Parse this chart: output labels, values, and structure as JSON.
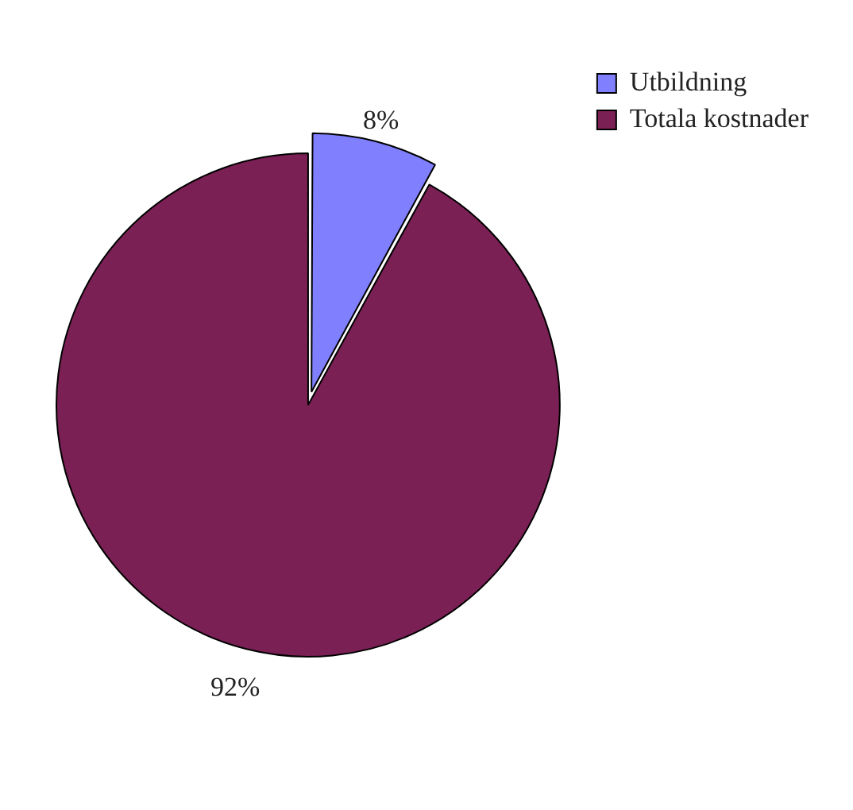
{
  "chart_data": {
    "type": "pie",
    "categories": [
      "Utbildning",
      "Totala kostnader"
    ],
    "values": [
      8,
      92
    ],
    "colors": [
      "#8080ff",
      "#7b2055"
    ],
    "value_labels": [
      "8%",
      "92%"
    ],
    "legend": "top right"
  }
}
